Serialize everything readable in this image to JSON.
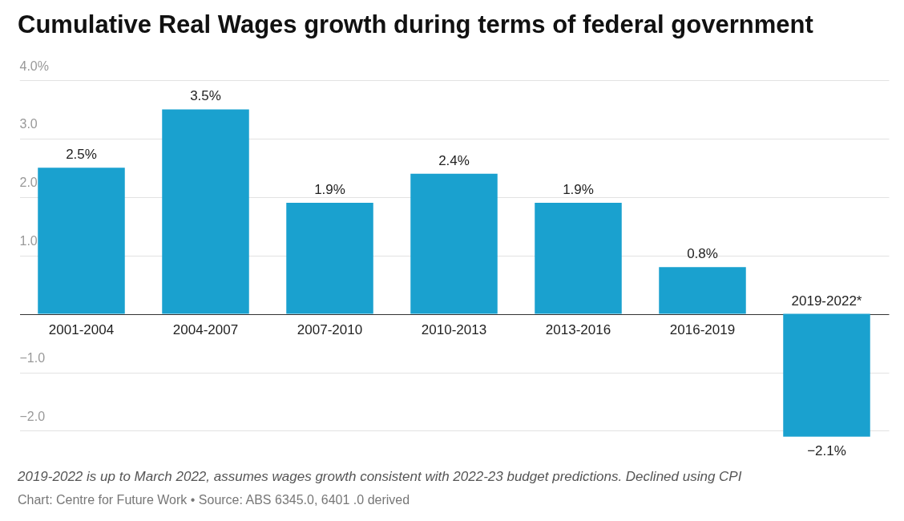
{
  "chart_data": {
    "type": "bar",
    "title": "Cumulative Real Wages growth during terms of federal government",
    "categories": [
      "2001-2004",
      "2004-2007",
      "2007-2010",
      "2010-2013",
      "2013-2016",
      "2016-2019",
      "2019-2022*"
    ],
    "values": [
      2.5,
      3.5,
      1.9,
      2.4,
      1.9,
      0.8,
      -2.1
    ],
    "value_labels": [
      "2.5%",
      "3.5%",
      "1.9%",
      "2.4%",
      "1.9%",
      "0.8%",
      "−2.1%"
    ],
    "color": "#1aa1cf",
    "ylim": [
      -2.2,
      4.0
    ],
    "yticks": [
      {
        "value": 4,
        "label": "4.0%"
      },
      {
        "value": 3,
        "label": "3.0"
      },
      {
        "value": 2,
        "label": "2.0"
      },
      {
        "value": 1,
        "label": "1.0"
      },
      {
        "value": 0,
        "label": null
      },
      {
        "value": -1,
        "label": "−1.0"
      },
      {
        "value": -2,
        "label": "−2.0"
      }
    ],
    "grid": "y",
    "annotations": [
      "2019-2022 is up to March 2022, assumes wages growth consistent with 2022-23 budget predictions. Declined using CPI",
      "Chart: Centre for Future Work • Source: ABS 6345.0, 6401 .0 derived"
    ]
  }
}
